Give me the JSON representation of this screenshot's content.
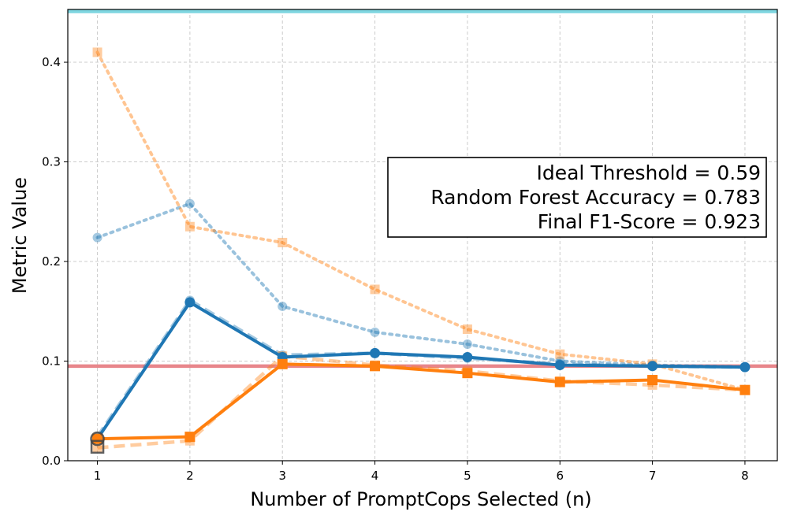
{
  "chart_data": {
    "type": "line",
    "title": "",
    "xlabel": "Number of PromptCops Selected (n)",
    "ylabel": "Metric Value",
    "xlim": [
      0.68,
      8.35
    ],
    "ylim": [
      0,
      0.453
    ],
    "x_ticks": [
      "1",
      "2",
      "3",
      "4",
      "5",
      "6",
      "7",
      "8"
    ],
    "y_ticks": [
      "0.0",
      "0.1",
      "0.2",
      "0.3",
      "0.4"
    ],
    "grid": true,
    "series": [
      {
        "role": "solid-blue",
        "color": "#1f77b4",
        "style": "solid",
        "marker": "circle",
        "x": [
          1,
          2,
          3,
          4,
          5,
          6,
          7,
          8
        ],
        "y": [
          0.022,
          0.159,
          0.104,
          0.108,
          0.104,
          0.096,
          0.095,
          0.094
        ]
      },
      {
        "role": "solid-orange",
        "color": "#ff7f0e",
        "style": "solid",
        "marker": "square",
        "x": [
          1,
          2,
          3,
          4,
          5,
          6,
          7,
          8
        ],
        "y": [
          0.022,
          0.024,
          0.097,
          0.095,
          0.088,
          0.079,
          0.081,
          0.071
        ]
      },
      {
        "role": "dashed-blue",
        "color": "#1f77b4",
        "style": "dashed",
        "marker": "circle",
        "x": [
          1,
          2,
          3,
          4,
          5,
          6,
          7,
          8
        ],
        "y": [
          0.024,
          0.161,
          0.106,
          0.108,
          0.103,
          0.097,
          0.095,
          0.094
        ]
      },
      {
        "role": "dashed-orange",
        "color": "#ff7f0e",
        "style": "dashed",
        "marker": "square",
        "x": [
          1,
          2,
          3,
          4,
          5,
          6,
          7,
          8
        ],
        "y": [
          0.013,
          0.02,
          0.105,
          0.096,
          0.09,
          0.08,
          0.076,
          0.071
        ]
      },
      {
        "role": "dotted-blue",
        "color": "#1f77b4",
        "style": "dotted",
        "marker": "circle",
        "x": [
          1,
          2,
          3,
          4,
          5,
          6,
          7,
          8
        ],
        "y": [
          0.224,
          0.258,
          0.155,
          0.129,
          0.117,
          0.1,
          0.096,
          0.094
        ]
      },
      {
        "role": "dotted-orange",
        "color": "#ff7f0e",
        "style": "dotted",
        "marker": "square",
        "x": [
          1,
          2,
          3,
          4,
          5,
          6,
          7,
          8
        ],
        "y": [
          0.41,
          0.235,
          0.219,
          0.172,
          0.132,
          0.107,
          0.097,
          0.071
        ]
      }
    ],
    "reference_lines": [
      {
        "y": 0.451,
        "color": "#7fd6e0"
      },
      {
        "y": 0.095,
        "color": "#e8868b"
      }
    ],
    "highlight_points": [
      {
        "x": 1,
        "y": 0.022,
        "shape": "circle"
      },
      {
        "x": 1,
        "y": 0.014,
        "shape": "square"
      }
    ],
    "annotation": {
      "lines": [
        "Ideal Threshold = 0.59",
        "Random Forest Accuracy = 0.783",
        "Final F1-Score = 0.923"
      ],
      "position": "right"
    }
  }
}
